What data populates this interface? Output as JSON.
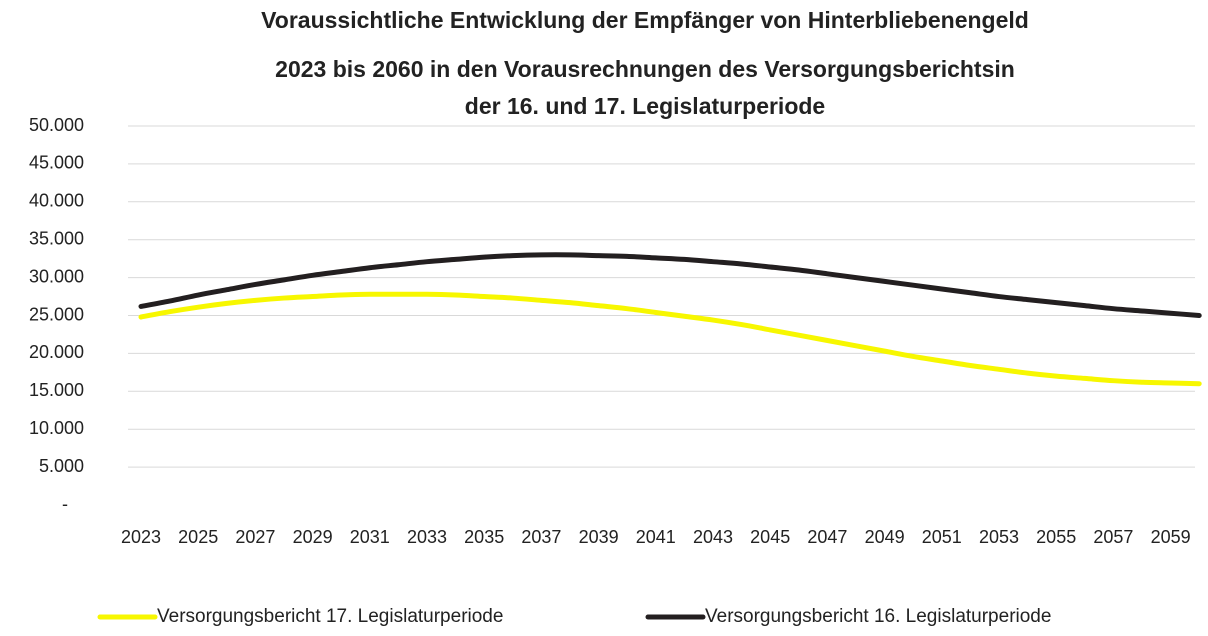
{
  "chart_data": {
    "type": "line",
    "title": [
      "Voraussichtliche Entwicklung der Empfänger von Hinterbliebenengeld",
      "2023 bis 2060 in den Vorausrechnungen des Versorgungsberichtsin",
      "der 16. und 17. Legislaturperiode"
    ],
    "categories": [
      "2023",
      null,
      "2025",
      null,
      "2027",
      null,
      "2029",
      null,
      "2031",
      null,
      "2033",
      null,
      "2035",
      null,
      "2037",
      null,
      "2039",
      null,
      "2041",
      null,
      "2043",
      null,
      "2045",
      null,
      "2047",
      null,
      "2049",
      null,
      "2051",
      null,
      "2053",
      null,
      "2055",
      null,
      "2057",
      null,
      "2059",
      null
    ],
    "series": [
      {
        "name": "Versorgungsbericht 17. Legislaturperiode",
        "color": "#f7f700",
        "values": [
          24800,
          25500,
          26100,
          26600,
          27000,
          27300,
          27500,
          27700,
          27800,
          27800,
          27800,
          27700,
          27500,
          27300,
          27000,
          26700,
          26300,
          25900,
          25400,
          24900,
          24400,
          23800,
          23100,
          22400,
          21700,
          21000,
          20300,
          19600,
          19000,
          18400,
          17900,
          17400,
          17000,
          16700,
          16400,
          16200,
          16100,
          16000
        ]
      },
      {
        "name": "Versorgungsbericht 16. Legislaturperiode",
        "color": "#231f20",
        "values": [
          26200,
          26900,
          27700,
          28400,
          29100,
          29700,
          30300,
          30800,
          31300,
          31700,
          32100,
          32400,
          32700,
          32900,
          33000,
          33000,
          32900,
          32800,
          32600,
          32400,
          32100,
          31800,
          31400,
          31000,
          30500,
          30000,
          29500,
          29000,
          28500,
          28000,
          27500,
          27100,
          26700,
          26300,
          25900,
          25600,
          25300,
          25000
        ]
      }
    ],
    "ylim": [
      0,
      50000
    ],
    "yticks": [
      {
        "value": 0,
        "label": "-"
      },
      {
        "value": 5000,
        "label": "5.000"
      },
      {
        "value": 10000,
        "label": "10.000"
      },
      {
        "value": 15000,
        "label": "15.000"
      },
      {
        "value": 20000,
        "label": "20.000"
      },
      {
        "value": 25000,
        "label": "25.000"
      },
      {
        "value": 30000,
        "label": "30.000"
      },
      {
        "value": 35000,
        "label": "35.000"
      },
      {
        "value": 40000,
        "label": "40.000"
      },
      {
        "value": 45000,
        "label": "45.000"
      },
      {
        "value": 50000,
        "label": "50.000"
      }
    ],
    "grid": true,
    "legend": "bottom"
  }
}
